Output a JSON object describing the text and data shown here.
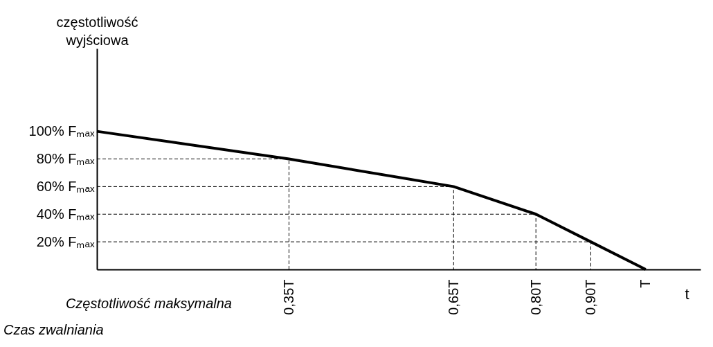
{
  "chart_data": {
    "type": "line",
    "xlabel": "t",
    "ylabel": "częstotliwość wyjściowa",
    "x": [
      0,
      0.35,
      0.65,
      0.8,
      0.9,
      1
    ],
    "series": [
      {
        "color": "#000000",
        "values": [
          100,
          80,
          60,
          40,
          20,
          0
        ]
      },
      {
        "color": "#000000",
        "line_style": "dashed",
        "x": [
          0,
          0.35,
          0.35
        ],
        "values": [
          80,
          80,
          0
        ]
      },
      {
        "color": "#000000",
        "line_style": "dashed",
        "x": [
          0,
          0.65,
          0.65
        ],
        "values": [
          60,
          60,
          0
        ]
      },
      {
        "color": "#000000",
        "line_style": "dashed",
        "x": [
          0,
          0.8,
          0.8
        ],
        "values": [
          40,
          40,
          0
        ]
      },
      {
        "color": "#000000",
        "line_style": "dashed",
        "x": [
          0,
          0.9,
          0.9
        ],
        "values": [
          20,
          20,
          0
        ]
      }
    ],
    "xlim": [
      0,
      1.1
    ],
    "ylim": [
      0,
      160
    ],
    "xticks": [
      {
        "value": 0.35,
        "label": "0,35T"
      },
      {
        "value": 0.65,
        "label": "0,65T"
      },
      {
        "value": 0.8,
        "label": "0,80T"
      },
      {
        "value": 0.9,
        "label": "0,90T"
      },
      {
        "value": 1,
        "label": "T"
      }
    ],
    "yticks": [
      {
        "value": 20,
        "label": "20% Fₘₐₓ"
      },
      {
        "value": 40,
        "label": "40% Fₘₐₓ"
      },
      {
        "value": 60,
        "label": "60% Fₘₐₓ"
      },
      {
        "value": 80,
        "label": "80% Fₘₐₓ"
      },
      {
        "value": 100,
        "label": "100% Fₘₐₓ"
      }
    ],
    "line_style": "solid",
    "marker": "none",
    "annotations": [
      "Częstotliwość maksymalna",
      "Czas zwalniania"
    ]
  }
}
